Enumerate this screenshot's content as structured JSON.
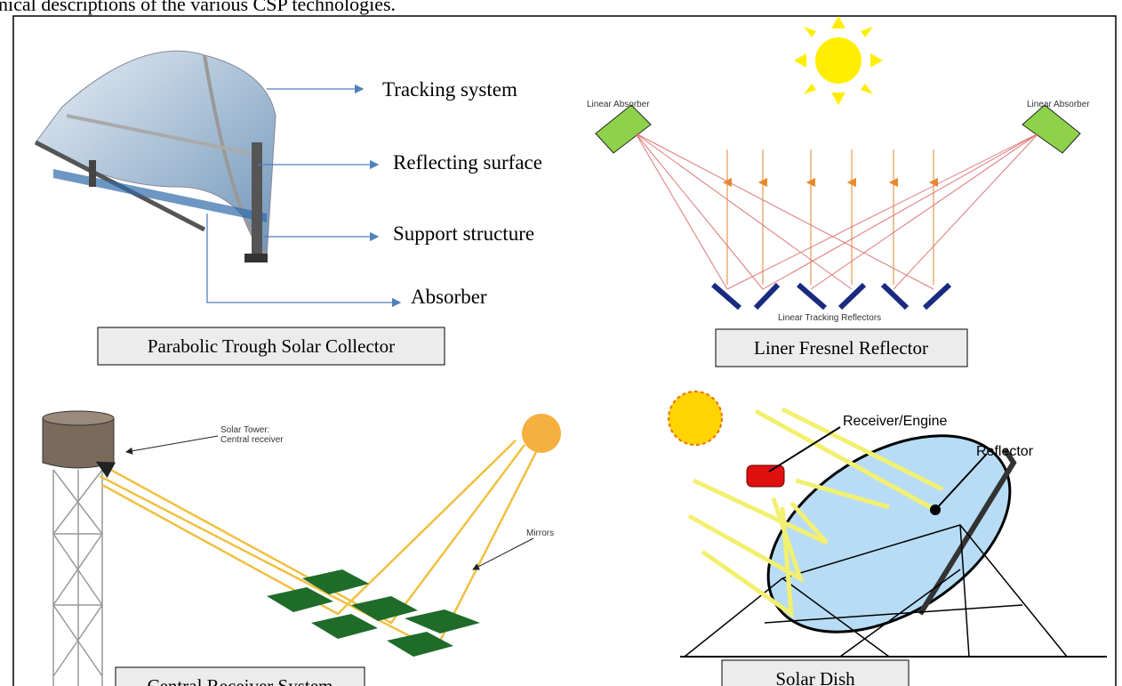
{
  "intro_text": "nical descriptions of the various CSP technologies.",
  "panels": [
    {
      "caption": "Parabolic Trough Solar Collector",
      "labels": [
        "Tracking system",
        "Reflecting surface",
        "Support structure",
        "Absorber"
      ]
    },
    {
      "caption": "Liner Fresnel Reflector",
      "labels": [
        "Linear Absorber",
        "Linear Absorber",
        "Linear Tracking Reflectors"
      ]
    },
    {
      "caption": "Central Receiver System",
      "labels": [
        "Solar Tower:",
        "Central receiver",
        "Mirrors"
      ]
    },
    {
      "caption": "Solar Dish",
      "labels": [
        "Receiver/Engine",
        "Reflector"
      ]
    }
  ]
}
